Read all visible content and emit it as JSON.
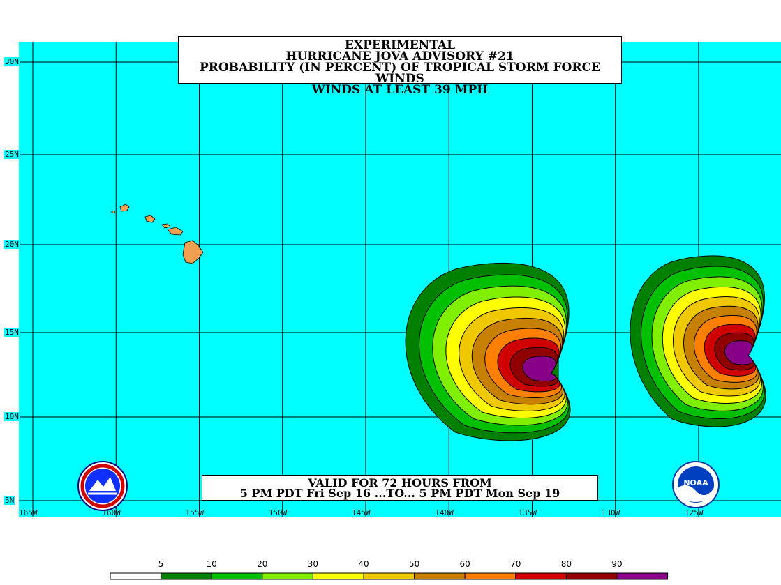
{
  "title": {
    "line1": "EXPERIMENTAL",
    "line2": "HURRICANE JOVA ADVISORY #21",
    "line3": "PROBABILITY (IN PERCENT) OF TROPICAL STORM FORCE WINDS",
    "line4": "WINDS AT LEAST 39 MPH"
  },
  "valid": {
    "line1": "VALID FOR 72 HOURS FROM",
    "line2": "5 PM PDT Fri Sep 16 ...TO... 5 PM PDT Mon Sep 19"
  },
  "latitude_labels": [
    "30N",
    "25N",
    "20N",
    "15N",
    "10N",
    "5N"
  ],
  "longitude_labels": [
    "165W",
    "160W",
    "155W",
    "150W",
    "145W",
    "140W",
    "135W",
    "130W",
    "125W"
  ],
  "legend": {
    "labels": [
      "5",
      "10",
      "20",
      "30",
      "40",
      "50",
      "60",
      "70",
      "80",
      "90"
    ],
    "colors": [
      "#ffffff",
      "#008000",
      "#00c000",
      "#80f000",
      "#ffff00",
      "#f0c800",
      "#c88000",
      "#ff8000",
      "#d00000",
      "#900000",
      "#880088"
    ]
  },
  "colors": {
    "ocean": "#00ffff",
    "land": "#f0a050"
  },
  "logos": {
    "left": "nws-logo",
    "right": "noaa-logo"
  }
}
